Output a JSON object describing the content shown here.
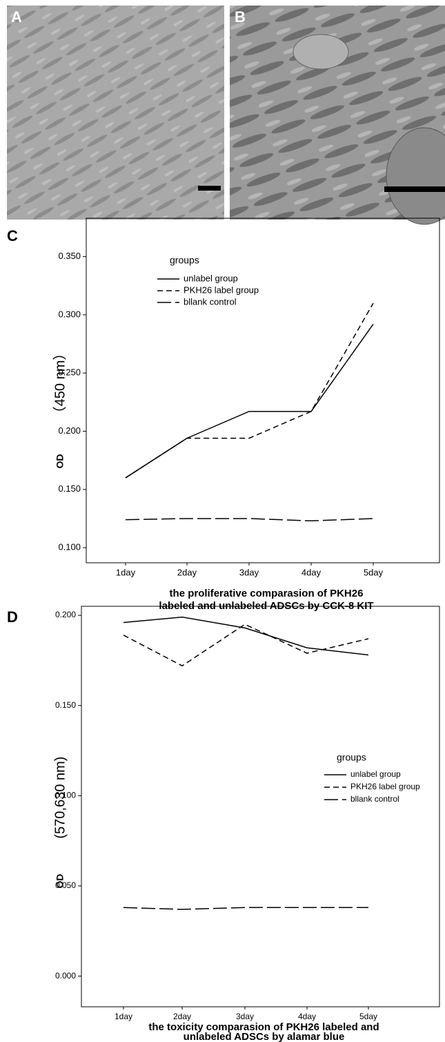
{
  "image_panels": [
    {
      "label": "A"
    },
    {
      "label": "B"
    }
  ],
  "chart_data": [
    {
      "type": "line",
      "panel_label": "C",
      "y_label_main": "OD",
      "y_label_unit": "（450 nm）",
      "x_label_lines": [
        "the proliferative comparasion of PKH26",
        "labeled and unlabeled ADSCs by CCK-8 KIT"
      ],
      "legend_title": "groups",
      "legend": "upper-left",
      "categories": [
        "1day",
        "2day",
        "3day",
        "4day",
        "5day"
      ],
      "series": [
        {
          "name": "unlabel group",
          "color": "#000000",
          "line_style": "solid",
          "values": [
            0.16,
            0.194,
            0.217,
            0.217,
            0.292
          ]
        },
        {
          "name": "PKH26 label group",
          "color": "#000000",
          "line_style": "dashed",
          "values": [
            0.16,
            0.194,
            0.194,
            0.217,
            0.31
          ]
        },
        {
          "name": "bllank control",
          "color": "#000000",
          "line_style": "long-dashed",
          "values": [
            0.124,
            0.125,
            0.125,
            0.123,
            0.125
          ]
        }
      ],
      "ylim": [
        0.087,
        0.383
      ],
      "yticks": [
        {
          "value": 0.1,
          "label": "0.100"
        },
        {
          "value": 0.15,
          "label": "0.150"
        },
        {
          "value": 0.2,
          "label": "0.200"
        },
        {
          "value": 0.25,
          "label": "0.250"
        },
        {
          "value": 0.3,
          "label": "0.300"
        },
        {
          "value": 0.35,
          "label": "0.350"
        }
      ]
    },
    {
      "type": "line",
      "panel_label": "D",
      "y_label_main": "OD",
      "y_label_unit": "(570,630 nm)",
      "x_label_lines": [
        "the toxicity comparasion of PKH26 labeled and",
        "unlabeled ADSCs by alamar blue"
      ],
      "legend_title": "groups",
      "legend": "center-right",
      "categories": [
        "1day",
        "2day",
        "3day",
        "4day",
        "5day"
      ],
      "series": [
        {
          "name": "unlabel group",
          "color": "#000000",
          "line_style": "solid",
          "values": [
            0.196,
            0.199,
            0.193,
            0.182,
            0.178
          ]
        },
        {
          "name": "PKH26 label group",
          "color": "#000000",
          "line_style": "dashed",
          "values": [
            0.189,
            0.172,
            0.195,
            0.179,
            0.187
          ]
        },
        {
          "name": "bllank control",
          "color": "#000000",
          "line_style": "long-dashed",
          "values": [
            0.038,
            0.037,
            0.038,
            0.038,
            0.038
          ]
        }
      ],
      "ylim": [
        -0.017,
        0.205
      ],
      "yticks": [
        {
          "value": 0,
          "label": "0.000"
        },
        {
          "value": 0.05,
          "label": "0.050"
        },
        {
          "value": 0.1,
          "label": "0.100"
        },
        {
          "value": 0.15,
          "label": "0.150"
        },
        {
          "value": 0.2,
          "label": "0.200"
        }
      ]
    }
  ]
}
